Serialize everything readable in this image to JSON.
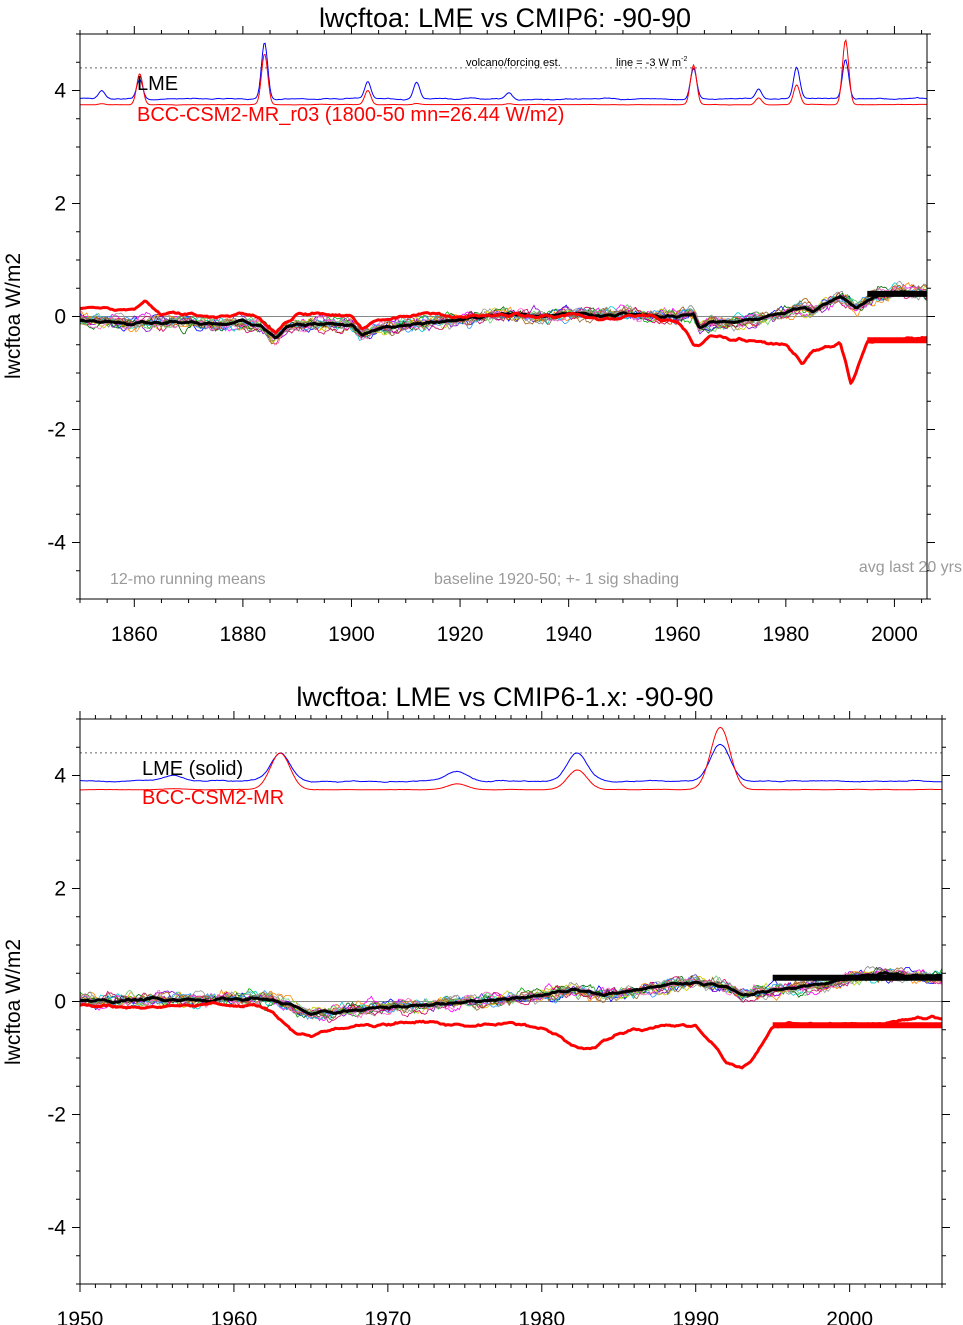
{
  "chart_data": [
    {
      "type": "line",
      "title": "lwcftoa: LME vs CMIP6: -90-90",
      "ylabel": "lwcftoa W/m2",
      "xlim": [
        1850,
        2006
      ],
      "ylim": [
        -5,
        5
      ],
      "x_ticks": [
        1860,
        1880,
        1900,
        1920,
        1940,
        1960,
        1980,
        2000
      ],
      "y_ticks": [
        -4,
        -2,
        0,
        2,
        4
      ],
      "y_tick_labels": [
        "-4",
        "-2",
        "0",
        "2",
        "4"
      ],
      "legend": [
        {
          "label": "LME",
          "color": "#000000"
        },
        {
          "label": "BCC-CSM2-MR_r03 (1800-50 mn=26.44 W/m2)",
          "color": "#ff0000"
        }
      ],
      "annotations": {
        "volcano_label": "volcano/forcing est.",
        "line_label": "line = -3 W m",
        "line_label_sup": "-2",
        "running_means": "12-mo running means",
        "baseline": "baseline 1920-50; +- 1 sig shading",
        "avg_last": "avg last 20 yrs"
      },
      "reference_line_y": 4.4,
      "avg_last_20_yrs": {
        "LME": 0.4,
        "BCC-CSM2-MR": -0.42,
        "x_range": [
          1995,
          2006
        ]
      },
      "volcano_forcing": {
        "blue_base": 3.85,
        "red_base": 3.75,
        "events": [
          {
            "year": 1854,
            "blue": 0.15,
            "red": 0.02
          },
          {
            "year": 1861,
            "blue": 0.35,
            "red": 0.55
          },
          {
            "year": 1884,
            "blue": 1.0,
            "red": 0.9
          },
          {
            "year": 1903,
            "blue": 0.3,
            "red": 0.25
          },
          {
            "year": 1912,
            "blue": 0.3,
            "red": 0.02
          },
          {
            "year": 1929,
            "blue": 0.12,
            "red": 0.02
          },
          {
            "year": 1963,
            "blue": 0.55,
            "red": 0.7
          },
          {
            "year": 1975,
            "blue": 0.18,
            "red": 0.12
          },
          {
            "year": 1982,
            "blue": 0.55,
            "red": 0.35
          },
          {
            "year": 1991,
            "blue": 0.7,
            "red": 1.15
          }
        ]
      },
      "series": [
        {
          "name": "LME",
          "color": "#000000",
          "x": [
            1851,
            1855,
            1860,
            1865,
            1870,
            1875,
            1880,
            1883,
            1886,
            1888,
            1890,
            1895,
            1900,
            1902,
            1905,
            1910,
            1915,
            1920,
            1925,
            1930,
            1935,
            1940,
            1945,
            1950,
            1955,
            1960,
            1963,
            1964,
            1966,
            1970,
            1975,
            1980,
            1983,
            1985,
            1990,
            1993,
            1995,
            2000,
            2006
          ],
          "values": [
            -0.05,
            -0.1,
            -0.12,
            -0.1,
            -0.1,
            -0.15,
            -0.1,
            -0.15,
            -0.38,
            -0.2,
            -0.15,
            -0.12,
            -0.15,
            -0.32,
            -0.2,
            -0.15,
            -0.1,
            -0.05,
            0.0,
            0.05,
            0.0,
            0.05,
            0.02,
            0.05,
            0.0,
            0.0,
            0.05,
            -0.2,
            -0.1,
            -0.1,
            -0.05,
            0.08,
            0.15,
            0.1,
            0.35,
            0.15,
            0.3,
            0.45,
            0.42
          ]
        },
        {
          "name": "BCC-CSM2-MR",
          "color": "#ff0000",
          "x": [
            1851,
            1855,
            1860,
            1862,
            1865,
            1870,
            1875,
            1880,
            1883,
            1886,
            1888,
            1890,
            1895,
            1900,
            1902,
            1905,
            1910,
            1915,
            1920,
            1925,
            1930,
            1935,
            1940,
            1945,
            1950,
            1955,
            1960,
            1962,
            1963,
            1964,
            1966,
            1970,
            1975,
            1980,
            1982,
            1983,
            1985,
            1990,
            1991,
            1992,
            1993,
            1995,
            2000,
            2006
          ],
          "values": [
            0.15,
            0.15,
            0.1,
            0.3,
            0.05,
            0.05,
            0.0,
            0.05,
            0.0,
            -0.3,
            -0.1,
            0.05,
            0.05,
            0.0,
            -0.2,
            -0.05,
            0.0,
            0.05,
            0.0,
            0.0,
            0.05,
            0.0,
            0.05,
            -0.05,
            0.0,
            0.0,
            -0.1,
            -0.3,
            -0.5,
            -0.55,
            -0.35,
            -0.4,
            -0.45,
            -0.5,
            -0.7,
            -0.85,
            -0.6,
            -0.5,
            -0.8,
            -1.2,
            -1.0,
            -0.45,
            -0.4,
            -0.35
          ]
        }
      ]
    },
    {
      "type": "line",
      "title": "lwcftoa: LME vs CMIP6-1.x: -90-90",
      "ylabel": "lwcftoa W/m2",
      "xlim": [
        1950,
        2006
      ],
      "ylim": [
        -5,
        5
      ],
      "x_ticks": [
        1950,
        1960,
        1970,
        1980,
        1990,
        2000
      ],
      "y_ticks": [
        -4,
        -2,
        0,
        2,
        4
      ],
      "y_tick_labels": [
        "-4",
        "-2",
        "0",
        "2",
        "4"
      ],
      "legend": [
        {
          "label": "LME (solid)",
          "color": "#000000"
        },
        {
          "label": "BCC-CSM2-MR",
          "color": "#ff0000"
        }
      ],
      "reference_line_y": 4.4,
      "avg_last_20_yrs": {
        "LME": 0.42,
        "BCC-CSM2-MR": -0.42,
        "x_range": [
          1995,
          2006
        ]
      },
      "volcano_forcing": {
        "blue_base": 3.9,
        "red_base": 3.75,
        "events": [
          {
            "year": 1956,
            "blue": 0.1,
            "red": 0.02
          },
          {
            "year": 1963,
            "blue": 0.5,
            "red": 0.65
          },
          {
            "year": 1974.5,
            "blue": 0.18,
            "red": 0.1
          },
          {
            "year": 1982.3,
            "blue": 0.5,
            "red": 0.35
          },
          {
            "year": 1991.6,
            "blue": 0.65,
            "red": 1.1
          }
        ]
      },
      "series": [
        {
          "name": "LME",
          "color": "#000000",
          "x": [
            1950,
            1952,
            1955,
            1958,
            1960,
            1962,
            1963.5,
            1965,
            1967,
            1970,
            1973,
            1975,
            1978,
            1980,
            1982,
            1984,
            1986,
            1988,
            1990,
            1992,
            1993,
            1995,
            1998,
            2000,
            2002,
            2004,
            2006
          ],
          "values": [
            0.02,
            0.0,
            0.05,
            0.02,
            0.05,
            0.05,
            -0.05,
            -0.22,
            -0.18,
            -0.1,
            -0.05,
            0.0,
            0.05,
            0.12,
            0.2,
            0.12,
            0.2,
            0.28,
            0.35,
            0.25,
            0.1,
            0.2,
            0.3,
            0.4,
            0.5,
            0.45,
            0.45
          ]
        },
        {
          "name": "BCC-CSM2-MR",
          "color": "#ff0000",
          "x": [
            1950,
            1952,
            1955,
            1958,
            1960,
            1962,
            1963,
            1964,
            1965,
            1967,
            1970,
            1972,
            1975,
            1978,
            1980,
            1981,
            1982,
            1983,
            1984,
            1985,
            1987,
            1990,
            1991,
            1992,
            1993,
            1994,
            1995,
            1996,
            1998,
            2000,
            2002,
            2004,
            2006
          ],
          "values": [
            -0.05,
            -0.08,
            -0.1,
            -0.05,
            -0.05,
            -0.1,
            -0.3,
            -0.55,
            -0.6,
            -0.45,
            -0.4,
            -0.35,
            -0.42,
            -0.4,
            -0.45,
            -0.6,
            -0.8,
            -0.85,
            -0.7,
            -0.55,
            -0.45,
            -0.42,
            -0.7,
            -1.1,
            -1.2,
            -0.9,
            -0.45,
            -0.4,
            -0.42,
            -0.4,
            -0.4,
            -0.3,
            -0.3
          ]
        }
      ]
    }
  ]
}
